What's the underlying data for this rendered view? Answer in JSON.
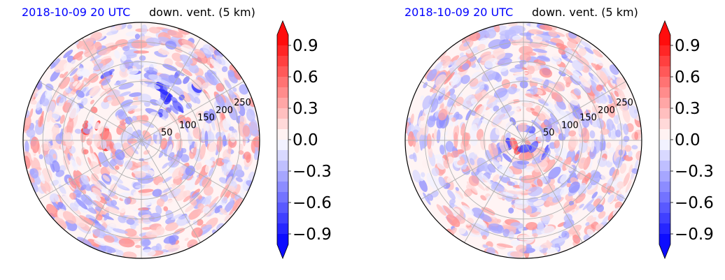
{
  "chart_data": [
    {
      "type": "heatmap",
      "projection": "polar",
      "title_left": "2018-10-09 20 UTC",
      "title_right": "down. vent. (5 km)",
      "radial_ticks": [
        "50",
        "100",
        "150",
        "200",
        "250"
      ],
      "radial_tick_values": [
        50,
        100,
        150,
        200,
        250
      ],
      "r_max": 300,
      "angular_gridlines_deg": [
        0,
        30,
        60,
        90,
        120,
        150,
        180,
        210,
        240,
        270,
        300,
        330
      ],
      "grid": true,
      "colormap": "bwr",
      "colorbar": {
        "vmin": -1.0,
        "vmax": 1.0,
        "ticks": [
          "0.9",
          "0.6",
          "0.3",
          "0.0",
          "−0.3",
          "−0.6",
          "−0.9"
        ],
        "tick_values": [
          0.9,
          0.6,
          0.3,
          0.0,
          -0.3,
          -0.6,
          -0.9
        ],
        "extend": "both",
        "levels": 20
      }
    },
    {
      "type": "heatmap",
      "projection": "polar",
      "title_left": "2018-10-09 20 UTC",
      "title_right": "down. vent. (5 km)",
      "radial_ticks": [
        "50",
        "100",
        "150",
        "200",
        "250"
      ],
      "radial_tick_values": [
        50,
        100,
        150,
        200,
        250
      ],
      "r_max": 300,
      "angular_gridlines_deg": [
        0,
        30,
        60,
        90,
        120,
        150,
        180,
        210,
        240,
        270,
        300,
        330
      ],
      "grid": true,
      "colormap": "bwr",
      "colorbar": {
        "vmin": -1.0,
        "vmax": 1.0,
        "ticks": [
          "0.9",
          "0.6",
          "0.3",
          "0.0",
          "−0.3",
          "−0.6",
          "−0.9"
        ],
        "tick_values": [
          0.9,
          0.6,
          0.3,
          0.0,
          -0.3,
          -0.6,
          -0.9
        ],
        "extend": "both",
        "levels": 20
      }
    }
  ]
}
